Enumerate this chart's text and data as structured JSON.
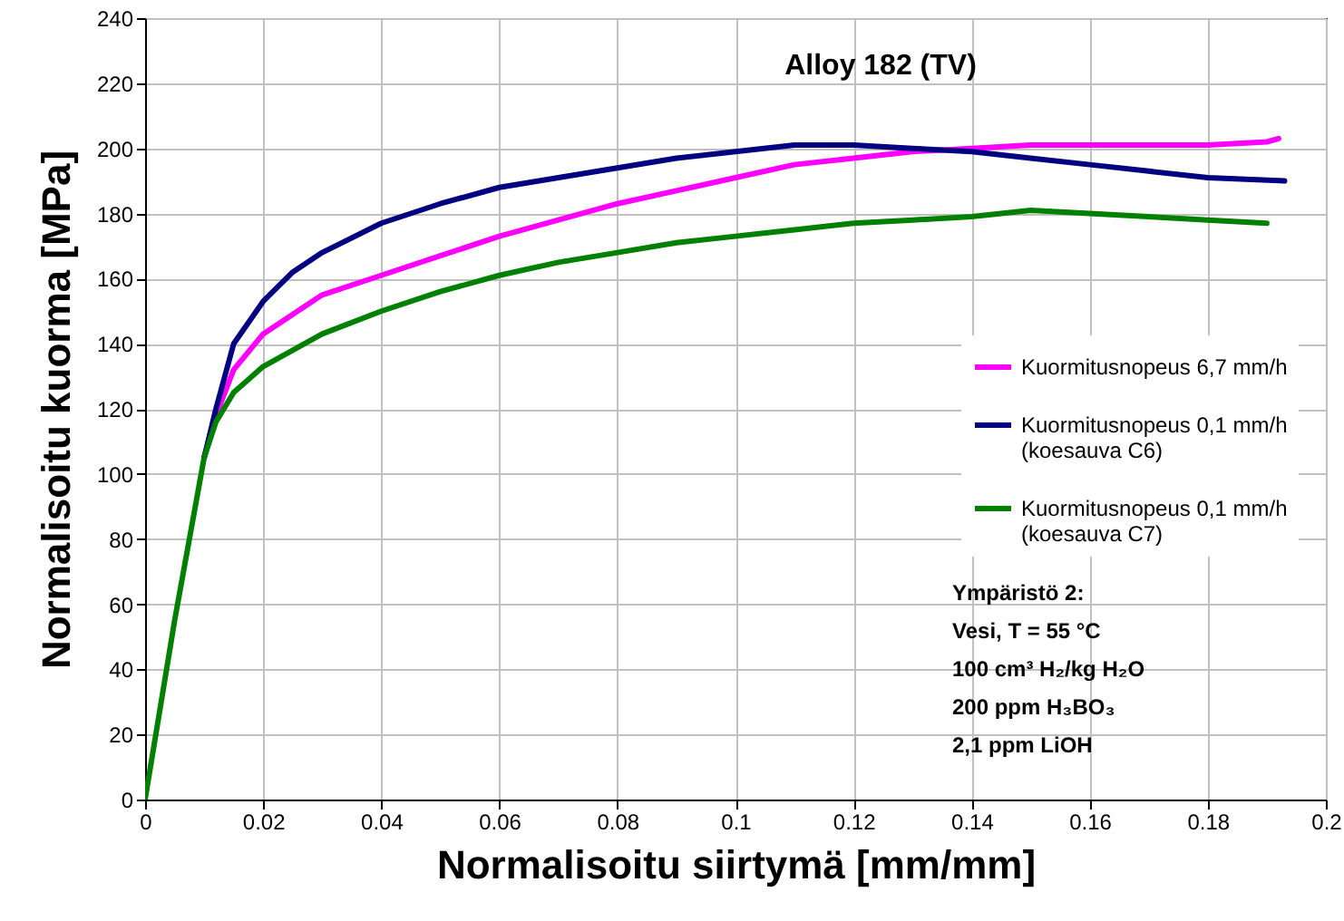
{
  "chart_data": {
    "type": "line",
    "title": "Alloy 182 (TV)",
    "xlabel": "Normalisoitu siirtymä [mm/mm]",
    "ylabel": "Normalisoitu kuorma [MPa]",
    "xlim": [
      0,
      0.2
    ],
    "xticks": [
      0,
      0.02,
      0.04,
      0.06,
      0.08,
      0.1,
      0.12,
      0.14,
      0.16,
      0.18,
      0.2
    ],
    "ylim": [
      0,
      240
    ],
    "yticks": [
      0,
      20,
      40,
      60,
      80,
      100,
      120,
      140,
      160,
      180,
      200,
      220,
      240
    ],
    "grid": true,
    "legend": "right",
    "marker": "none",
    "line_style": "solid",
    "annotations": [
      "Ympäristö 2:",
      "Vesi, T = 55 °C",
      "100 cm³ H₂/kg H₂O",
      "200 ppm H₃BO₃",
      "2,1 ppm LiOH"
    ],
    "series": [
      {
        "name": "Kuormitusnopeus 6,7 mm/h",
        "color": "#ff00ff",
        "x": [
          0.01,
          0.012,
          0.015,
          0.02,
          0.03,
          0.04,
          0.05,
          0.06,
          0.07,
          0.08,
          0.09,
          0.1,
          0.11,
          0.12,
          0.13,
          0.14,
          0.15,
          0.16,
          0.17,
          0.18,
          0.19,
          0.192
        ],
        "values": [
          105,
          118,
          132,
          143,
          155,
          161,
          167,
          173,
          178,
          183,
          187,
          191,
          195,
          197,
          199,
          200,
          201,
          201,
          201,
          201,
          202,
          203
        ]
      },
      {
        "name": "Kuormitusnopeus 0,1 mm/h\n(koesauva C6)",
        "color": "#000080",
        "x": [
          0.01,
          0.012,
          0.015,
          0.02,
          0.025,
          0.03,
          0.04,
          0.05,
          0.06,
          0.07,
          0.08,
          0.09,
          0.1,
          0.11,
          0.12,
          0.13,
          0.14,
          0.15,
          0.16,
          0.17,
          0.18,
          0.193
        ],
        "values": [
          105,
          120,
          140,
          153,
          162,
          168,
          177,
          183,
          188,
          191,
          194,
          197,
          199,
          201,
          201,
          200,
          199,
          197,
          195,
          193,
          191,
          190
        ]
      },
      {
        "name": "Kuormitusnopeus 0,1 mm/h\n(koesauva C7)",
        "color": "#008000",
        "x": [
          0,
          0.005,
          0.01,
          0.012,
          0.015,
          0.02,
          0.03,
          0.04,
          0.05,
          0.06,
          0.07,
          0.08,
          0.09,
          0.1,
          0.11,
          0.12,
          0.13,
          0.14,
          0.15,
          0.16,
          0.17,
          0.18,
          0.19
        ],
        "values": [
          0,
          55,
          105,
          116,
          125,
          133,
          143,
          150,
          156,
          161,
          165,
          168,
          171,
          173,
          175,
          177,
          178,
          179,
          181,
          180,
          179,
          178,
          177
        ]
      }
    ]
  }
}
